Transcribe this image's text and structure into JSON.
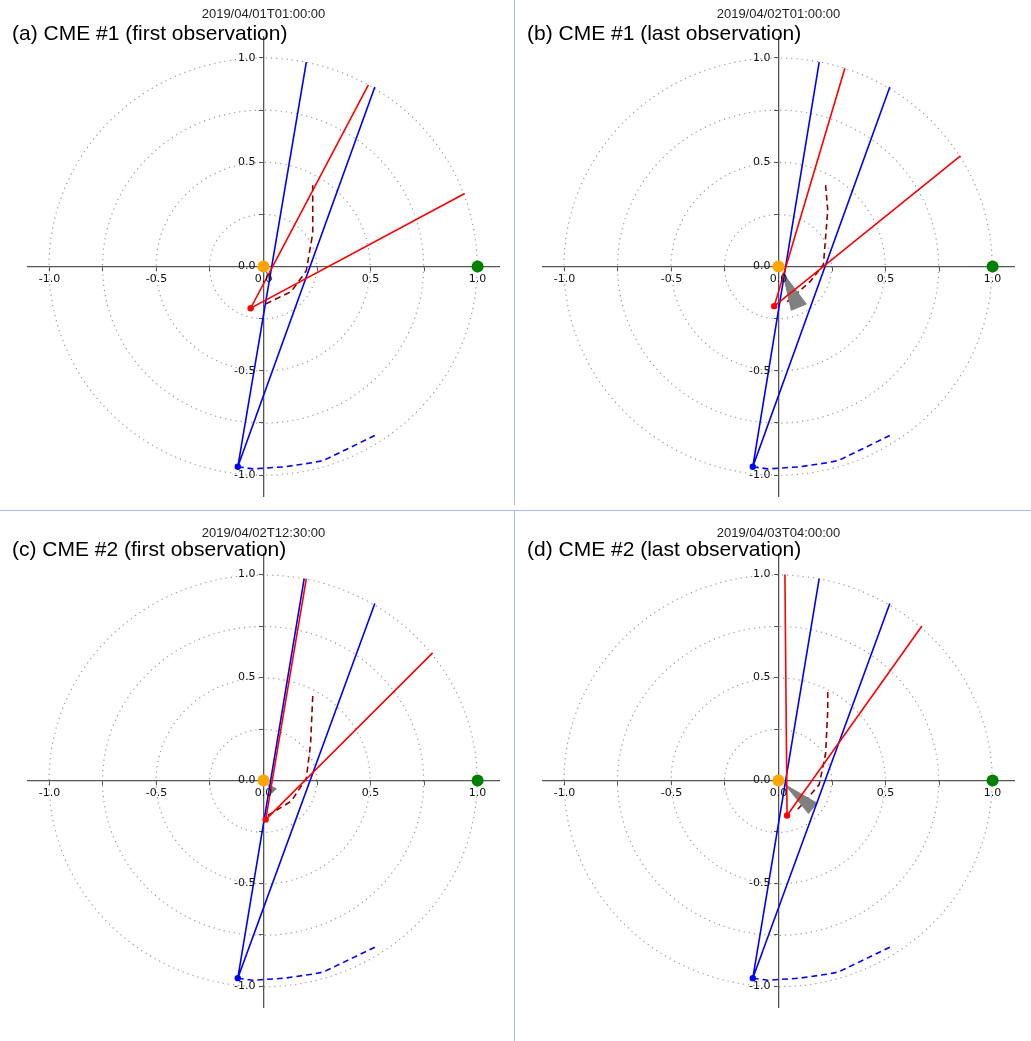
{
  "chart_data": [
    {
      "type": "line",
      "title": "(a) CME #1 (first observation)",
      "subtitle": "2019/04/01T01:00:00",
      "xlim": [
        -1.1,
        1.1
      ],
      "ylim": [
        -1.1,
        1.1
      ],
      "xticks": [
        {
          "value": -1,
          "label": "-1.0"
        },
        {
          "value": -0.75,
          "label": null
        },
        {
          "value": -0.5,
          "label": "-0.5"
        },
        {
          "value": -0.25,
          "label": null
        },
        {
          "value": 0,
          "label": "0.0"
        },
        {
          "value": 0.25,
          "label": null
        },
        {
          "value": 0.5,
          "label": "0.5"
        },
        {
          "value": 0.75,
          "label": null
        },
        {
          "value": 1,
          "label": "1.0"
        }
      ],
      "yticks": [
        {
          "value": -1,
          "label": "-1.0"
        },
        {
          "value": -0.75,
          "label": null
        },
        {
          "value": -0.5,
          "label": "-0.5"
        },
        {
          "value": -0.25,
          "label": null
        },
        {
          "value": 0,
          "label": "0.0"
        },
        {
          "value": 0.25,
          "label": null
        },
        {
          "value": 0.5,
          "label": "0.5"
        },
        {
          "value": 0.75,
          "label": null
        },
        {
          "value": 1,
          "label": "1.0"
        }
      ],
      "legend": false,
      "series": [
        {
          "type": "line",
          "color": "#0000ff",
          "line_style": "dashed",
          "x": [
            -0.12,
            -0.05,
            0.1,
            0.23,
            0.28,
            0.4,
            0.52
          ],
          "values": [
            -0.96,
            -0.97,
            -0.96,
            -0.94,
            -0.93,
            -0.87,
            -0.81
          ]
        },
        {
          "type": "line",
          "color": "#8b0000",
          "line_style": "dashed",
          "x": [
            0.01,
            0.13,
            0.2,
            0.23,
            0.23
          ],
          "values": [
            -0.18,
            -0.12,
            -0.02,
            0.16,
            0.39
          ]
        },
        {
          "type": "area",
          "color": "#808080",
          "x": [
            0.01,
            0.03,
            0.04,
            0.01
          ],
          "values": [
            -0.02,
            -0.07,
            -0.06,
            -0.02
          ]
        },
        {
          "type": "line",
          "color": "#0000ff",
          "line_style": "solid",
          "x": [
            0.2,
            -0.12,
            0.52
          ],
          "values": [
            0.98,
            -0.96,
            0.86
          ]
        },
        {
          "type": "line",
          "color": "#ff0000",
          "line_style": "solid",
          "x": [
            0.49,
            -0.06,
            0.94
          ],
          "values": [
            0.87,
            -0.2,
            0.35
          ]
        },
        {
          "type": "scatter",
          "color": "#ff0000",
          "marker": "circle",
          "x": [
            -0.06
          ],
          "values": [
            -0.2
          ]
        },
        {
          "type": "scatter",
          "color": "#0000ff",
          "marker": "circle",
          "x": [
            -0.12
          ],
          "values": [
            -0.96
          ]
        },
        {
          "type": "bubble",
          "color": "#ffa500",
          "x": [
            0
          ],
          "values": [
            0
          ],
          "sizes": [
            1
          ]
        },
        {
          "type": "bubble",
          "color": "#008000",
          "x": [
            1
          ],
          "values": [
            0
          ],
          "sizes": [
            1
          ]
        }
      ]
    },
    {
      "type": "line",
      "title": "(b) CME #1 (last observation)",
      "subtitle": "2019/04/02T01:00:00",
      "xlim": [
        -1.1,
        1.1
      ],
      "ylim": [
        -1.1,
        1.1
      ],
      "xticks": [
        {
          "value": -1,
          "label": "-1.0"
        },
        {
          "value": -0.75,
          "label": null
        },
        {
          "value": -0.5,
          "label": "-0.5"
        },
        {
          "value": -0.25,
          "label": null
        },
        {
          "value": 0,
          "label": "0.0"
        },
        {
          "value": 0.25,
          "label": null
        },
        {
          "value": 0.5,
          "label": "0.5"
        },
        {
          "value": 0.75,
          "label": null
        },
        {
          "value": 1,
          "label": "1.0"
        }
      ],
      "yticks": [
        {
          "value": -1,
          "label": "-1.0"
        },
        {
          "value": -0.75,
          "label": null
        },
        {
          "value": -0.5,
          "label": "-0.5"
        },
        {
          "value": -0.25,
          "label": null
        },
        {
          "value": 0,
          "label": "0.0"
        },
        {
          "value": 0.25,
          "label": null
        },
        {
          "value": 0.5,
          "label": "0.5"
        },
        {
          "value": 0.75,
          "label": null
        },
        {
          "value": 1,
          "label": "1.0"
        }
      ],
      "legend": false,
      "series": [
        {
          "type": "line",
          "color": "#0000ff",
          "line_style": "dashed",
          "x": [
            -0.12,
            -0.05,
            0.1,
            0.23,
            0.28,
            0.4,
            0.52
          ],
          "values": [
            -0.96,
            -0.97,
            -0.96,
            -0.94,
            -0.93,
            -0.87,
            -0.81
          ]
        },
        {
          "type": "line",
          "color": "#8b0000",
          "line_style": "dashed",
          "x": [
            0.04,
            0.15,
            0.21,
            0.23,
            0.22
          ],
          "values": [
            -0.17,
            -0.07,
            0.01,
            0.27,
            0.39
          ]
        },
        {
          "type": "area",
          "color": "#808080",
          "x": [
            0.02,
            0.06,
            0.13,
            0.02
          ],
          "values": [
            -0.03,
            -0.21,
            -0.18,
            -0.03
          ]
        },
        {
          "type": "line",
          "color": "#0000ff",
          "line_style": "solid",
          "x": [
            0.19,
            -0.12,
            0.52
          ],
          "values": [
            0.98,
            -0.96,
            0.86
          ]
        },
        {
          "type": "line",
          "color": "#ff0000",
          "line_style": "solid",
          "x": [
            0.31,
            -0.02,
            0.85
          ],
          "values": [
            0.95,
            -0.19,
            0.53
          ]
        },
        {
          "type": "scatter",
          "color": "#ff0000",
          "marker": "circle",
          "x": [
            -0.02
          ],
          "values": [
            -0.19
          ]
        },
        {
          "type": "scatter",
          "color": "#0000ff",
          "marker": "circle",
          "x": [
            -0.12
          ],
          "values": [
            -0.96
          ]
        },
        {
          "type": "bubble",
          "color": "#ffa500",
          "x": [
            0
          ],
          "values": [
            0
          ],
          "sizes": [
            1
          ]
        },
        {
          "type": "bubble",
          "color": "#008000",
          "x": [
            1
          ],
          "values": [
            0
          ],
          "sizes": [
            1
          ]
        }
      ]
    },
    {
      "type": "line",
      "title": "(c) CME #2 (first observation)",
      "subtitle": "2019/04/02T12:30:00",
      "xlim": [
        -1.1,
        1.1
      ],
      "ylim": [
        -1.1,
        1.1
      ],
      "xticks": [
        {
          "value": -1,
          "label": "-1.0"
        },
        {
          "value": -0.75,
          "label": null
        },
        {
          "value": -0.5,
          "label": "-0.5"
        },
        {
          "value": -0.25,
          "label": null
        },
        {
          "value": 0,
          "label": "0.0"
        },
        {
          "value": 0.25,
          "label": null
        },
        {
          "value": 0.5,
          "label": "0.5"
        },
        {
          "value": 0.75,
          "label": null
        },
        {
          "value": 1,
          "label": "1.0"
        }
      ],
      "yticks": [
        {
          "value": -1,
          "label": "-1.0"
        },
        {
          "value": -0.75,
          "label": null
        },
        {
          "value": -0.5,
          "label": "-0.5"
        },
        {
          "value": -0.25,
          "label": null
        },
        {
          "value": 0,
          "label": "0.0"
        },
        {
          "value": 0.25,
          "label": null
        },
        {
          "value": 0.5,
          "label": "0.5"
        },
        {
          "value": 0.75,
          "label": null
        },
        {
          "value": 1,
          "label": "1.0"
        }
      ],
      "legend": false,
      "series": [
        {
          "type": "line",
          "color": "#0000ff",
          "line_style": "dashed",
          "x": [
            -0.12,
            -0.05,
            0.1,
            0.23,
            0.28,
            0.4,
            0.52
          ],
          "values": [
            -0.96,
            -0.97,
            -0.96,
            -0.94,
            -0.93,
            -0.87,
            -0.81
          ]
        },
        {
          "type": "line",
          "color": "#8b0000",
          "line_style": "dashed",
          "x": [
            0.02,
            0.13,
            0.2,
            0.22,
            0.23
          ],
          "values": [
            -0.17,
            -0.1,
            0.01,
            0.18,
            0.41
          ]
        },
        {
          "type": "area",
          "color": "#808080",
          "x": [
            0.02,
            0.04,
            0.06,
            0.02
          ],
          "values": [
            -0.02,
            -0.06,
            -0.04,
            -0.02
          ]
        },
        {
          "type": "line",
          "color": "#0000ff",
          "line_style": "solid",
          "x": [
            0.19,
            -0.12,
            0.52
          ],
          "values": [
            0.98,
            -0.96,
            0.86
          ]
        },
        {
          "type": "line",
          "color": "#ff0000",
          "line_style": "solid",
          "x": [
            0.2,
            0.01,
            0.79
          ],
          "values": [
            0.98,
            -0.19,
            0.62
          ]
        },
        {
          "type": "scatter",
          "color": "#ff0000",
          "marker": "circle",
          "x": [
            0.01
          ],
          "values": [
            -0.19
          ]
        },
        {
          "type": "scatter",
          "color": "#0000ff",
          "marker": "circle",
          "x": [
            -0.12
          ],
          "values": [
            -0.96
          ]
        },
        {
          "type": "bubble",
          "color": "#ffa500",
          "x": [
            0
          ],
          "values": [
            0
          ],
          "sizes": [
            1
          ]
        },
        {
          "type": "bubble",
          "color": "#008000",
          "x": [
            1
          ],
          "values": [
            0
          ],
          "sizes": [
            1
          ]
        }
      ]
    },
    {
      "type": "line",
      "title": "(d) CME #2 (last observation)",
      "subtitle": "2019/04/03T04:00:00",
      "xlim": [
        -1.1,
        1.1
      ],
      "ylim": [
        -1.1,
        1.1
      ],
      "xticks": [
        {
          "value": -1,
          "label": "-1.0"
        },
        {
          "value": -0.75,
          "label": null
        },
        {
          "value": -0.5,
          "label": "-0.5"
        },
        {
          "value": -0.25,
          "label": null
        },
        {
          "value": 0,
          "label": "0.0"
        },
        {
          "value": 0.25,
          "label": null
        },
        {
          "value": 0.5,
          "label": "0.5"
        },
        {
          "value": 0.75,
          "label": null
        },
        {
          "value": 1,
          "label": "1.0"
        }
      ],
      "yticks": [
        {
          "value": -1,
          "label": "-1.0"
        },
        {
          "value": -0.75,
          "label": null
        },
        {
          "value": -0.5,
          "label": "-0.5"
        },
        {
          "value": -0.25,
          "label": null
        },
        {
          "value": 0,
          "label": "0.0"
        },
        {
          "value": 0.25,
          "label": null
        },
        {
          "value": 0.5,
          "label": "0.5"
        },
        {
          "value": 0.75,
          "label": null
        },
        {
          "value": 1,
          "label": "1.0"
        }
      ],
      "legend": false,
      "series": [
        {
          "type": "line",
          "color": "#0000ff",
          "line_style": "dashed",
          "x": [
            -0.12,
            -0.05,
            0.1,
            0.23,
            0.28,
            0.4,
            0.52
          ],
          "values": [
            -0.96,
            -0.97,
            -0.96,
            -0.94,
            -0.93,
            -0.87,
            -0.81
          ]
        },
        {
          "type": "line",
          "color": "#8b0000",
          "line_style": "dashed",
          "x": [
            0.09,
            0.19,
            0.22,
            0.23,
            0.23
          ],
          "values": [
            -0.14,
            -0.02,
            0.13,
            0.34,
            0.43
          ]
        },
        {
          "type": "area",
          "color": "#808080",
          "x": [
            0.03,
            0.14,
            0.18,
            0.03
          ],
          "values": [
            -0.02,
            -0.16,
            -0.11,
            -0.02
          ]
        },
        {
          "type": "line",
          "color": "#0000ff",
          "line_style": "solid",
          "x": [
            0.19,
            -0.12,
            0.52
          ],
          "values": [
            0.98,
            -0.96,
            0.86
          ]
        },
        {
          "type": "line",
          "color": "#ff0000",
          "line_style": "solid",
          "x": [
            0.03,
            0.04,
            0.67
          ],
          "values": [
            1.0,
            -0.17,
            0.75
          ]
        },
        {
          "type": "scatter",
          "color": "#ff0000",
          "marker": "circle",
          "x": [
            0.04
          ],
          "values": [
            -0.17
          ]
        },
        {
          "type": "scatter",
          "color": "#0000ff",
          "marker": "circle",
          "x": [
            -0.12
          ],
          "values": [
            -0.96
          ]
        },
        {
          "type": "bubble",
          "color": "#ffa500",
          "x": [
            0
          ],
          "values": [
            0
          ],
          "sizes": [
            1
          ]
        },
        {
          "type": "bubble",
          "color": "#008000",
          "x": [
            1
          ],
          "values": [
            0
          ],
          "sizes": [
            1
          ]
        }
      ]
    }
  ]
}
